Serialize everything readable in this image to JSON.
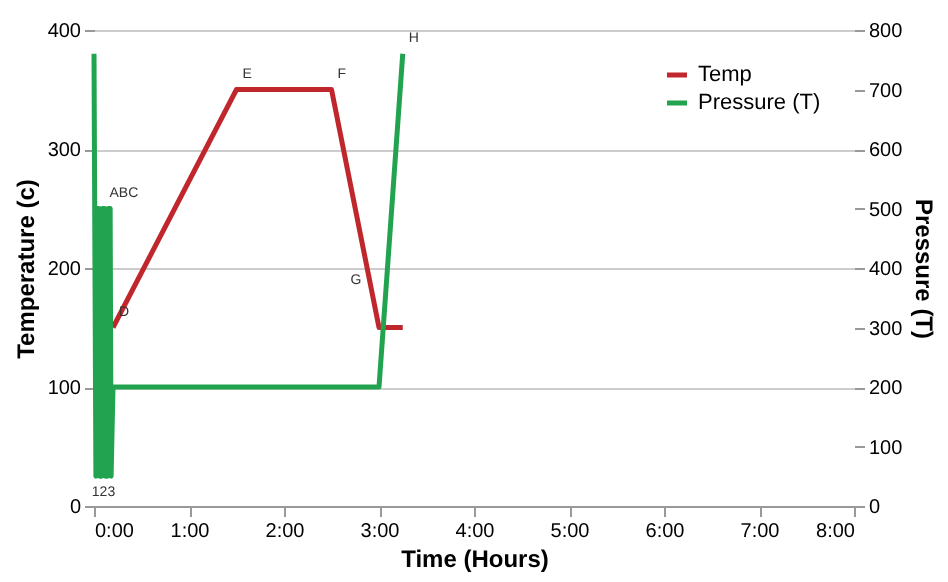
{
  "chart_data": {
    "type": "line",
    "xlabel": "Time (Hours)",
    "ylabel": "Temperature (c)",
    "y2label": "Pressure (T)",
    "xlim": [
      0,
      8
    ],
    "xticks": [
      {
        "value": 0,
        "label": "0:00"
      },
      {
        "value": 1,
        "label": "1:00"
      },
      {
        "value": 2,
        "label": "2:00"
      },
      {
        "value": 3,
        "label": "3:00"
      },
      {
        "value": 4,
        "label": "4:00"
      },
      {
        "value": 5,
        "label": "5:00"
      },
      {
        "value": 6,
        "label": "6:00"
      },
      {
        "value": 7,
        "label": "7:00"
      },
      {
        "value": 8,
        "label": "8:00"
      }
    ],
    "ylim": [
      0,
      400
    ],
    "yticks": [
      0,
      100,
      200,
      300,
      400
    ],
    "y2lim": [
      0,
      800
    ],
    "y2ticks": [
      0,
      100,
      200,
      300,
      400,
      500,
      600,
      700,
      800
    ],
    "grid": "y",
    "legend": "top right",
    "marker": "none",
    "line_style": "solid",
    "series": [
      {
        "name": "Temp",
        "color": "#c0272d",
        "x": [
          0.2,
          1.5,
          2.5,
          3.0,
          3.25
        ],
        "values": [
          150,
          350,
          350,
          150,
          150
        ]
      },
      {
        "name": "Pressure (T)",
        "color": "#22a350",
        "axis": "y2",
        "x": [
          0,
          0.02,
          0.03,
          0.05,
          0.06,
          0.08,
          0.09,
          0.11,
          0.12,
          0.14,
          0.15,
          0.17,
          0.18,
          0.2,
          3.0,
          3.25
        ],
        "values": [
          760,
          50,
          500,
          500,
          50,
          50,
          500,
          500,
          50,
          50,
          500,
          500,
          50,
          200,
          200,
          760
        ]
      }
    ],
    "annotations": [
      {
        "text": "ABC",
        "x": 0.1,
        "y": 250
      },
      {
        "text": "D",
        "x": 0.2,
        "y": 150
      },
      {
        "text": "E",
        "x": 1.5,
        "y": 350
      },
      {
        "text": "F",
        "x": 2.5,
        "y": 350
      },
      {
        "text": "G",
        "x": 2.9,
        "y": 190
      },
      {
        "text": "H",
        "x": 3.25,
        "y": 380
      },
      {
        "text": "123",
        "x": 0.1,
        "y": 25
      }
    ]
  }
}
